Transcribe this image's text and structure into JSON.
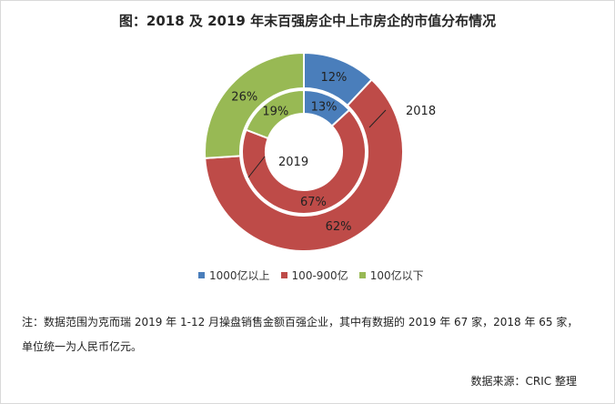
{
  "title": "图：2018 及 2019 年末百强房企中上市房企的市值分布情况",
  "chart_data": {
    "type": "pie",
    "subtype": "donut",
    "categories": [
      "1000亿以上",
      "100-900亿",
      "100亿以下"
    ],
    "colors": [
      "#4a7ebb",
      "#be4b48",
      "#98b954"
    ],
    "series": [
      {
        "name": "2018",
        "ring": "outer",
        "values": [
          12,
          62,
          26
        ],
        "labels": [
          "12%",
          "62%",
          "26%"
        ]
      },
      {
        "name": "2019",
        "ring": "inner",
        "values": [
          13,
          67,
          19
        ],
        "labels": [
          "13%",
          "67%",
          "19%"
        ]
      }
    ],
    "legend_position": "bottom"
  },
  "legend": [
    "1000亿以上",
    "100-900亿",
    "100亿以下"
  ],
  "note_line1": "注：数据范围为克而瑞 2019 年 1-12 月操盘销售金额百强企业，其中有数据的 2019 年 67 家，2018 年 65 家，",
  "note_line2": "单位统一为人民币亿元。",
  "source": "数据来源：CRIC 整理"
}
